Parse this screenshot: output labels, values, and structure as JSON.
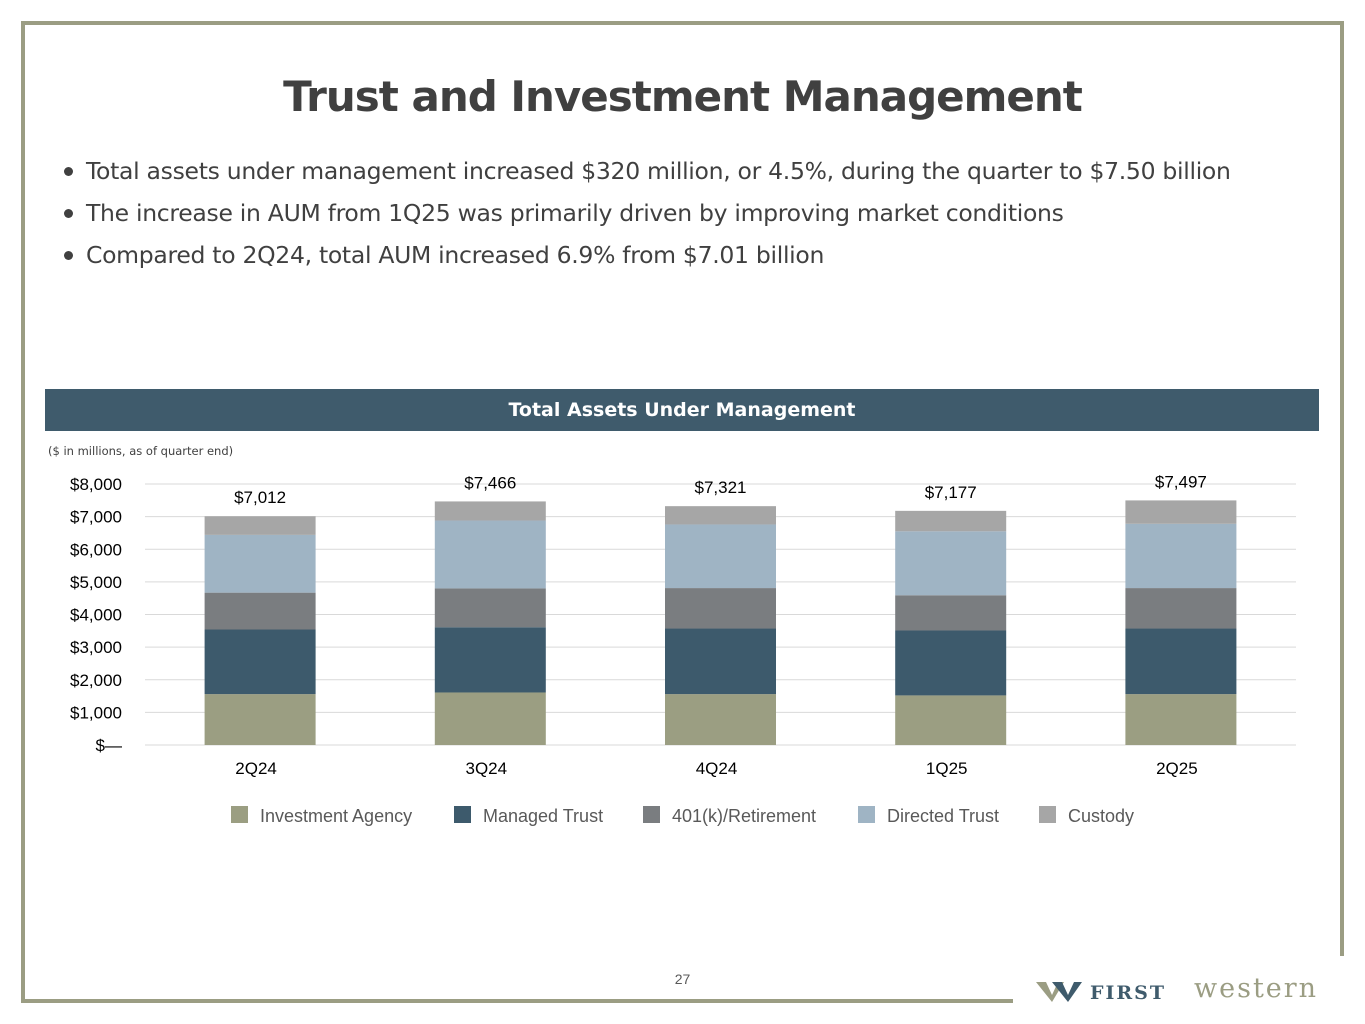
{
  "slide": {
    "title": "Trust and Investment Management",
    "bullets": [
      "Total assets under management increased $320 million, or 4.5%, during the quarter to $7.50 billion",
      "The increase in AUM from 1Q25 was primarily driven by improving market conditions",
      "Compared to 2Q24, total AUM increased 6.9% from $7.01 billion"
    ],
    "chart_header": "Total Assets Under Management",
    "chart_note": "($ in millions, as of quarter end)",
    "page_number": "27",
    "logo": {
      "first": "FIRST",
      "western": "western"
    }
  },
  "colors": {
    "frame": "#9b9d83",
    "header_band": "#3f5b6c",
    "title_text": "#404040"
  },
  "chart_data": {
    "type": "bar",
    "stacked": true,
    "title": "Total Assets Under Management",
    "subtitle": "($ in millions, as of quarter end)",
    "categories": [
      "2Q24",
      "3Q24",
      "4Q24",
      "1Q25",
      "2Q25"
    ],
    "series": [
      {
        "name": "Investment Agency",
        "color": "#9b9e82",
        "values": [
          1560,
          1610,
          1560,
          1520,
          1560
        ]
      },
      {
        "name": "Managed Trust",
        "color": "#3d5a6c",
        "values": [
          1980,
          2000,
          2010,
          1990,
          2010
        ]
      },
      {
        "name": "401(k)/Retirement",
        "color": "#7a7d80",
        "values": [
          1130,
          1190,
          1240,
          1080,
          1240
        ]
      },
      {
        "name": "Directed Trust",
        "color": "#9fb4c4",
        "values": [
          1770,
          2080,
          1950,
          1960,
          1970
        ]
      },
      {
        "name": "Custody",
        "color": "#a6a6a6",
        "values": [
          572,
          586,
          561,
          627,
          717
        ]
      }
    ],
    "totals": [
      "$7,012",
      "$7,466",
      "$7,321",
      "$7,177",
      "$7,497"
    ],
    "y_ticks": [
      "$—",
      "$1,000",
      "$2,000",
      "$3,000",
      "$4,000",
      "$5,000",
      "$6,000",
      "$7,000",
      "$8,000"
    ],
    "ylim": [
      0,
      8000
    ],
    "y_step": 1000,
    "grid": true,
    "legend": "bottom"
  }
}
